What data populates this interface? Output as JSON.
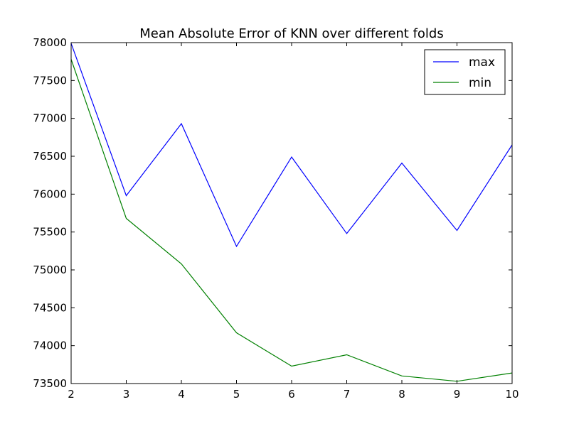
{
  "chart_data": {
    "type": "line",
    "title": "Mean Absolute Error of KNN over different folds",
    "xlabel": "",
    "ylabel": "",
    "x": [
      2,
      3,
      4,
      5,
      6,
      7,
      8,
      9,
      10
    ],
    "xlim": [
      2,
      10
    ],
    "ylim": [
      73500,
      78000
    ],
    "xticks": [
      2,
      3,
      4,
      5,
      6,
      7,
      8,
      9,
      10
    ],
    "yticks": [
      73500,
      74000,
      74500,
      75000,
      75500,
      76000,
      76500,
      77000,
      77500,
      78000
    ],
    "grid": false,
    "legend_position": "top-right",
    "series": [
      {
        "name": "max",
        "color": "#0000ff",
        "values": [
          77990,
          75980,
          76930,
          75310,
          76490,
          75480,
          76410,
          75520,
          76650
        ]
      },
      {
        "name": "min",
        "color": "#008000",
        "values": [
          77780,
          75680,
          75080,
          74170,
          73730,
          73880,
          73600,
          73530,
          73640
        ]
      }
    ]
  }
}
